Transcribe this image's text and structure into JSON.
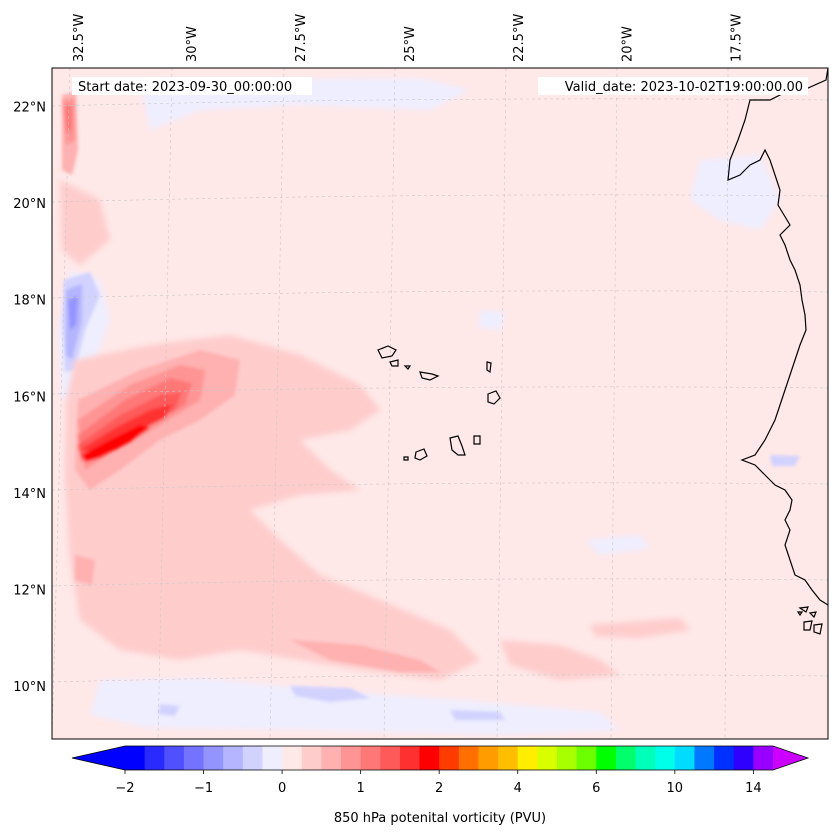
{
  "chart_data": {
    "type": "heatmap",
    "title_left": "Start date: 2023-09-30_00:00:00",
    "title_right": "Valid_date: 2023-10-02T19:00:00.00",
    "x_ticks": [
      {
        "value": -32.5,
        "label": "32.5°W"
      },
      {
        "value": -30.0,
        "label": "30°W"
      },
      {
        "value": -27.5,
        "label": "27.5°W"
      },
      {
        "value": -25.0,
        "label": "25°W"
      },
      {
        "value": -22.5,
        "label": "22.5°W"
      },
      {
        "value": -20.0,
        "label": "20°W"
      },
      {
        "value": -17.5,
        "label": "17.5°W"
      }
    ],
    "y_ticks": [
      {
        "value": 22,
        "label": "22°N"
      },
      {
        "value": 20,
        "label": "20°N"
      },
      {
        "value": 18,
        "label": "18°N"
      },
      {
        "value": 16,
        "label": "16°N"
      },
      {
        "value": 14,
        "label": "14°N"
      },
      {
        "value": 12,
        "label": "12°N"
      },
      {
        "value": 10,
        "label": "10°N"
      }
    ],
    "lon_range": [
      -33.0,
      -15.2
    ],
    "lat_range": [
      8.9,
      22.8
    ],
    "colorbar": {
      "label": "850 hPa potenital vorticity (PVU)",
      "ticks": [
        {
          "value": -2,
          "label": "−2"
        },
        {
          "value": -1,
          "label": "−1"
        },
        {
          "value": 0,
          "label": "0"
        },
        {
          "value": 1,
          "label": "1"
        },
        {
          "value": 2,
          "label": "2"
        },
        {
          "value": 4,
          "label": "4"
        },
        {
          "value": 6,
          "label": "6"
        },
        {
          "value": 10,
          "label": "10"
        },
        {
          "value": 14,
          "label": "14"
        }
      ],
      "tick_positions": [
        -2,
        -1,
        0,
        1,
        2,
        4,
        6,
        10,
        14
      ],
      "colors": [
        "#0000ff",
        "#2a2aff",
        "#5050ff",
        "#7373ff",
        "#9494ff",
        "#b4b4ff",
        "#d2d2ff",
        "#eeeeff",
        "#ffe8e8",
        "#ffcccc",
        "#ffb0b0",
        "#ff9494",
        "#ff7878",
        "#ff5a5a",
        "#ff3030",
        "#ff0000",
        "#ff3c00",
        "#ff7000",
        "#ff9c00",
        "#ffbe00",
        "#ffee00",
        "#d8ff00",
        "#a8ff00",
        "#6cff00",
        "#00ff00",
        "#00ff6a",
        "#00ffb8",
        "#00ffe8",
        "#00dcff",
        "#0078ff",
        "#0030ff",
        "#3000ff",
        "#9800ff"
      ],
      "extend_low": "#0000ff",
      "extend_high": "#cc00ff"
    },
    "background_color": "#ffe8e8",
    "features": [
      {
        "name": "pv-maximum",
        "lon": -31.6,
        "lat": 14.8,
        "value": 2.2
      },
      {
        "name": "negative-band",
        "lon": -32.3,
        "lat": 17.8,
        "value": -1.0
      },
      {
        "name": "western-positive-strip",
        "lon": -32.4,
        "lat": 21.8,
        "value": 1.5
      }
    ]
  }
}
